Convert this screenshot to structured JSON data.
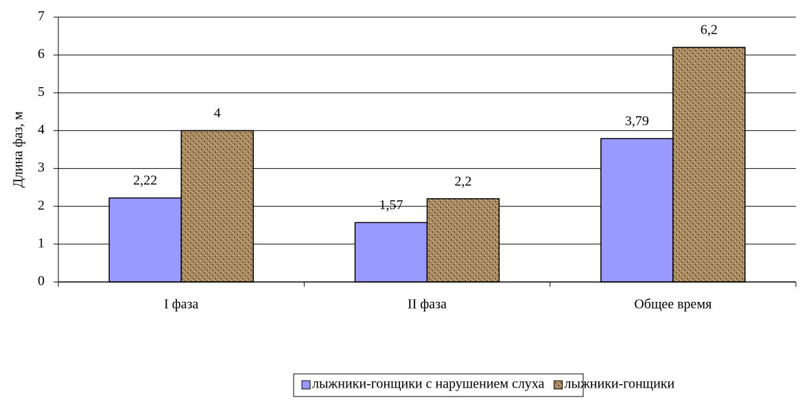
{
  "chart_data": {
    "type": "bar",
    "y_label": "Длина фаз, м",
    "categories": [
      "I фаза",
      "II фаза",
      "Общее время"
    ],
    "series": [
      {
        "name": "лыжники-гонщики с нарушением слуха",
        "color": "#9999ff",
        "values": [
          2.22,
          1.57,
          3.79
        ],
        "value_labels": [
          "2,22",
          "1,57",
          "3,79"
        ]
      },
      {
        "name": "лыжники-гонщики",
        "color": "#b8966a",
        "values": [
          4,
          2.2,
          6.2
        ],
        "value_labels": [
          "4",
          "2,2",
          "6,2"
        ]
      }
    ],
    "ylim": [
      0,
      7
    ],
    "yticks": [
      0,
      1,
      2,
      3,
      4,
      5,
      6,
      7
    ],
    "grid": true,
    "legend": "bottom"
  }
}
